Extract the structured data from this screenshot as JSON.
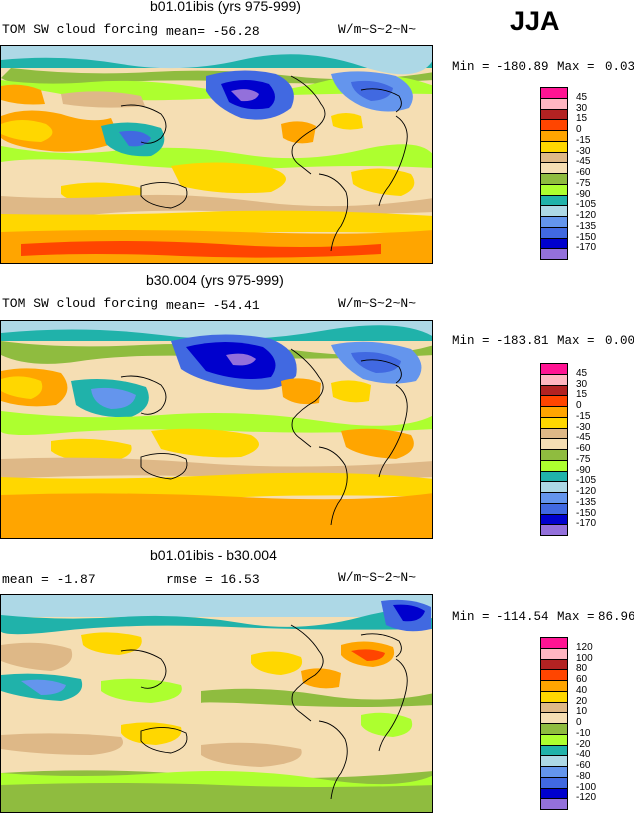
{
  "season": "JJA",
  "panels": [
    {
      "title": "b01.01ibis (yrs 975-999)",
      "left_text": "TOM SW cloud forcing",
      "stat1": "mean=  -56.28",
      "stat2": "",
      "units": "W/m~S~2~N~",
      "min_label": "Min = ",
      "min_value": "-180.89",
      "max_label": "Max = ",
      "max_value": "0.03",
      "legend_labels": [
        "45",
        "30",
        "15",
        "0",
        "-15",
        "-30",
        "-45",
        "-60",
        "-75",
        "-90",
        "-105",
        "-120",
        "-135",
        "-150",
        "-170"
      ],
      "legend_colors": [
        "#ff1493",
        "#ffb6c1",
        "#b22222",
        "#ff4500",
        "#ffa500",
        "#ffd700",
        "#deb887",
        "#f5deb3",
        "#8fbc3f",
        "#adff2f",
        "#20b2aa",
        "#add8e6",
        "#6495ed",
        "#4169e1",
        "#0000cd",
        "#9370db"
      ]
    },
    {
      "title": "b30.004 (yrs 975-999)",
      "left_text": "TOM SW cloud forcing",
      "stat1": "mean=  -54.41",
      "stat2": "",
      "units": "W/m~S~2~N~",
      "min_label": "Min = ",
      "min_value": "-183.81",
      "max_label": "Max = ",
      "max_value": "0.00",
      "legend_labels": [
        "45",
        "30",
        "15",
        "0",
        "-15",
        "-30",
        "-45",
        "-60",
        "-75",
        "-90",
        "-105",
        "-120",
        "-135",
        "-150",
        "-170"
      ],
      "legend_colors": [
        "#ff1493",
        "#ffb6c1",
        "#b22222",
        "#ff4500",
        "#ffa500",
        "#ffd700",
        "#deb887",
        "#f5deb3",
        "#8fbc3f",
        "#adff2f",
        "#20b2aa",
        "#add8e6",
        "#6495ed",
        "#4169e1",
        "#0000cd",
        "#9370db"
      ]
    },
    {
      "title": "b01.01ibis - b30.004",
      "left_text": "mean =  -1.87",
      "stat1": "",
      "stat2": "rmse =  16.53",
      "units": "W/m~S~2~N~",
      "min_label": "Min = ",
      "min_value": "-114.54",
      "max_label": "Max = ",
      "max_value": "86.96",
      "legend_labels": [
        "120",
        "100",
        "80",
        "60",
        "40",
        "20",
        "10",
        "0",
        "-10",
        "-20",
        "-40",
        "-60",
        "-80",
        "-100",
        "-120"
      ],
      "legend_colors": [
        "#ff1493",
        "#ffb6c1",
        "#b22222",
        "#ff4500",
        "#ffa500",
        "#ffd700",
        "#deb887",
        "#f5deb3",
        "#8fbc3f",
        "#adff2f",
        "#20b2aa",
        "#add8e6",
        "#6495ed",
        "#4169e1",
        "#0000cd",
        "#9370db"
      ]
    }
  ]
}
